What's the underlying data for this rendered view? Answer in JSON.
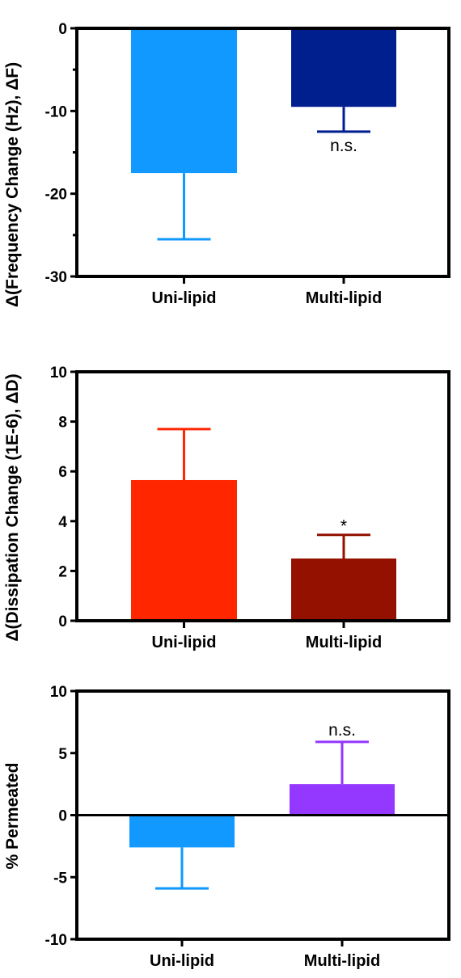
{
  "chart_data": [
    {
      "type": "bar",
      "categories": [
        "Uni-lipid",
        "Multi-lipid"
      ],
      "values": [
        -17.5,
        -9.5
      ],
      "errors": [
        8.0,
        3.0
      ],
      "colors": [
        "#1199ff",
        "#001f8f"
      ],
      "annotations": [
        "",
        "n.s."
      ],
      "ylabel": "Δ(Frequency Change (Hz), ΔF)",
      "ylim": [
        -30,
        0
      ],
      "yticks": [
        0,
        -10,
        -20,
        -30
      ],
      "xlabel": "",
      "title": ""
    },
    {
      "type": "bar",
      "categories": [
        "Uni-lipid",
        "Multi-lipid"
      ],
      "values": [
        5.65,
        2.5
      ],
      "errors": [
        2.05,
        0.95
      ],
      "colors": [
        "#ff2600",
        "#941100"
      ],
      "annotations": [
        "",
        "*"
      ],
      "ylabel": "Δ(Dissipation Change (1E-6), ΔD)",
      "ylim": [
        0,
        10
      ],
      "yticks": [
        0,
        2,
        4,
        6,
        8,
        10
      ],
      "xlabel": "",
      "title": ""
    },
    {
      "type": "bar",
      "categories": [
        "Uni-lipid",
        "Multi-lipid"
      ],
      "values": [
        -2.6,
        2.5
      ],
      "errors": [
        3.3,
        3.4
      ],
      "colors": [
        "#1199ff",
        "#9437ff"
      ],
      "annotations": [
        "",
        "n.s."
      ],
      "ylabel": "% Permeated",
      "ylim": [
        -10,
        10
      ],
      "yticks": [
        10,
        5,
        0,
        -5,
        -10
      ],
      "xlabel": "",
      "title": ""
    }
  ]
}
